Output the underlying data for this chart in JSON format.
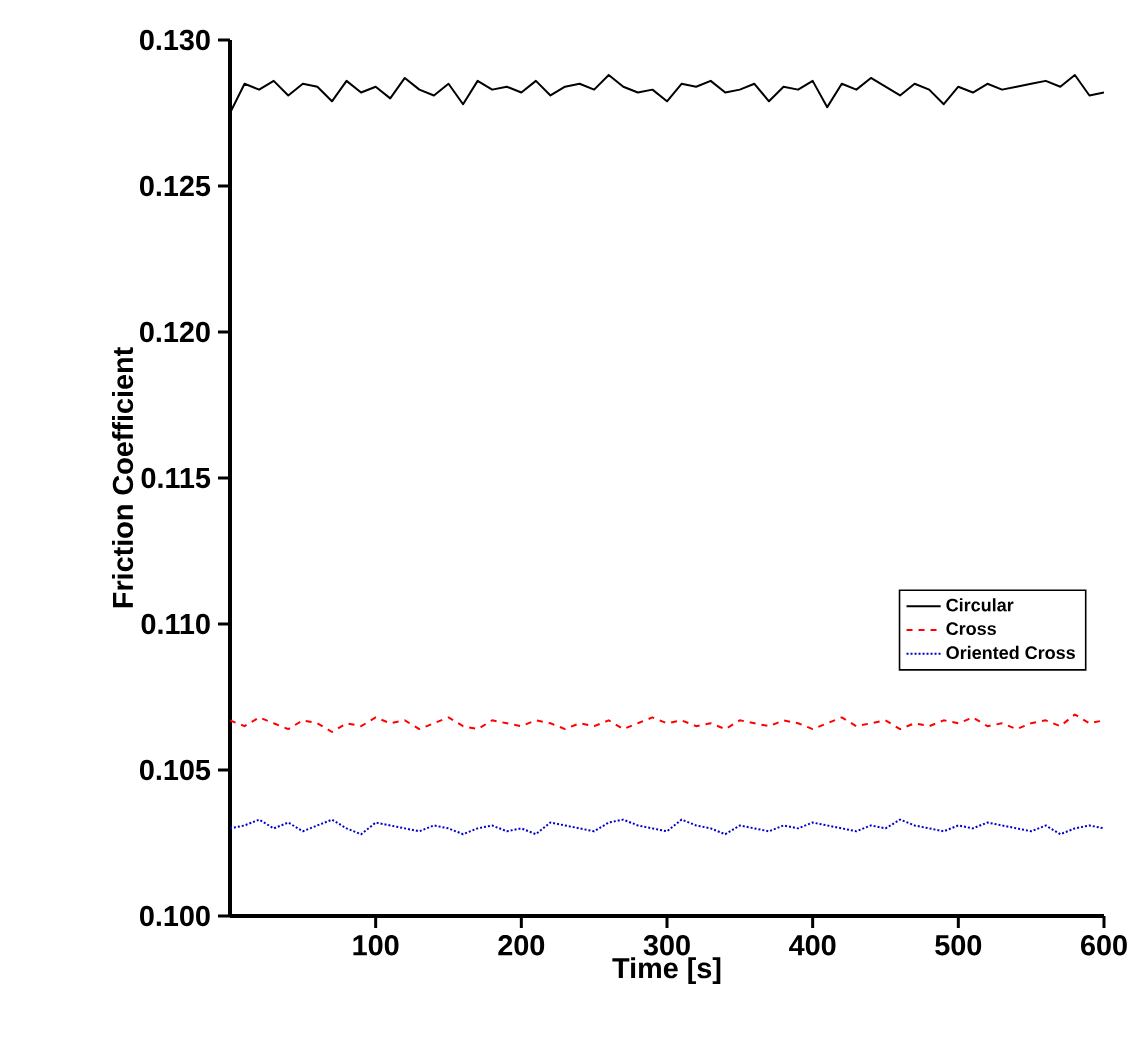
{
  "chart_data": {
    "type": "line",
    "xlabel": "Time [s]",
    "ylabel": "Friction Coefficient",
    "xlim": [
      0,
      600
    ],
    "ylim": [
      0.1,
      0.13
    ],
    "xticks": [
      100,
      200,
      300,
      400,
      500,
      600
    ],
    "yticks": [
      {
        "value": 0.1,
        "label": "0.100"
      },
      {
        "value": 0.105,
        "label": "0.105"
      },
      {
        "value": 0.11,
        "label": "0.110"
      },
      {
        "value": 0.115,
        "label": "0.115"
      },
      {
        "value": 0.12,
        "label": "0.120"
      },
      {
        "value": 0.125,
        "label": "0.125"
      },
      {
        "value": 0.13,
        "label": "0.130"
      }
    ],
    "grid": false,
    "legend": "right",
    "marker": "none",
    "x": [
      0,
      10,
      20,
      30,
      40,
      50,
      60,
      70,
      80,
      90,
      100,
      110,
      120,
      130,
      140,
      150,
      160,
      170,
      180,
      190,
      200,
      210,
      220,
      230,
      240,
      250,
      260,
      270,
      280,
      290,
      300,
      310,
      320,
      330,
      340,
      350,
      360,
      370,
      380,
      390,
      400,
      410,
      420,
      430,
      440,
      450,
      460,
      470,
      480,
      490,
      500,
      510,
      520,
      530,
      540,
      550,
      560,
      570,
      580,
      590,
      600
    ],
    "series": [
      {
        "name": "Circular",
        "color": "#000000",
        "line_style": "solid",
        "values": [
          0.1275,
          0.1285,
          0.1283,
          0.1286,
          0.1281,
          0.1285,
          0.1284,
          0.1279,
          0.1286,
          0.1282,
          0.1284,
          0.128,
          0.1287,
          0.1283,
          0.1281,
          0.1285,
          0.1278,
          0.1286,
          0.1283,
          0.1284,
          0.1282,
          0.1286,
          0.1281,
          0.1284,
          0.1285,
          0.1283,
          0.1288,
          0.1284,
          0.1282,
          0.1283,
          0.1279,
          0.1285,
          0.1284,
          0.1286,
          0.1282,
          0.1283,
          0.1285,
          0.1279,
          0.1284,
          0.1283,
          0.1286,
          0.1277,
          0.1285,
          0.1283,
          0.1287,
          0.1284,
          0.1281,
          0.1285,
          0.1283,
          0.1278,
          0.1284,
          0.1282,
          0.1285,
          0.1283,
          0.1284,
          0.1285,
          0.1286,
          0.1284,
          0.1288,
          0.1281,
          0.1282
        ]
      },
      {
        "name": "Cross",
        "color": "#ff0000",
        "line_style": "dashed",
        "values": [
          0.1067,
          0.1065,
          0.1068,
          0.1066,
          0.1064,
          0.1067,
          0.1066,
          0.1063,
          0.1066,
          0.1065,
          0.1068,
          0.1066,
          0.1067,
          0.1064,
          0.1066,
          0.1068,
          0.1065,
          0.1064,
          0.1067,
          0.1066,
          0.1065,
          0.1067,
          0.1066,
          0.1064,
          0.1066,
          0.1065,
          0.1067,
          0.1064,
          0.1066,
          0.1068,
          0.1066,
          0.1067,
          0.1065,
          0.1066,
          0.1064,
          0.1067,
          0.1066,
          0.1065,
          0.1067,
          0.1066,
          0.1064,
          0.1066,
          0.1068,
          0.1065,
          0.1066,
          0.1067,
          0.1064,
          0.1066,
          0.1065,
          0.1067,
          0.1066,
          0.1068,
          0.1065,
          0.1066,
          0.1064,
          0.1066,
          0.1067,
          0.1065,
          0.1069,
          0.1066,
          0.1067
        ]
      },
      {
        "name": "Oriented Cross",
        "color": "#0000cc",
        "line_style": "dotted",
        "values": [
          0.103,
          0.1031,
          0.1033,
          0.103,
          0.1032,
          0.1029,
          0.1031,
          0.1033,
          0.103,
          0.1028,
          0.1032,
          0.1031,
          0.103,
          0.1029,
          0.1031,
          0.103,
          0.1028,
          0.103,
          0.1031,
          0.1029,
          0.103,
          0.1028,
          0.1032,
          0.1031,
          0.103,
          0.1029,
          0.1032,
          0.1033,
          0.1031,
          0.103,
          0.1029,
          0.1033,
          0.1031,
          0.103,
          0.1028,
          0.1031,
          0.103,
          0.1029,
          0.1031,
          0.103,
          0.1032,
          0.1031,
          0.103,
          0.1029,
          0.1031,
          0.103,
          0.1033,
          0.1031,
          0.103,
          0.1029,
          0.1031,
          0.103,
          0.1032,
          0.1031,
          0.103,
          0.1029,
          0.1031,
          0.1028,
          0.103,
          0.1031,
          0.103
        ]
      }
    ]
  }
}
